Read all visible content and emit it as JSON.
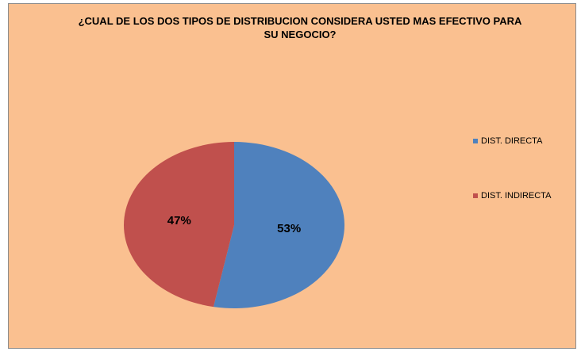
{
  "chart_data": {
    "type": "pie",
    "title": "¿CUAL DE LOS DOS TIPOS DE DISTRIBUCION CONSIDERA USTED MAS EFECTIVO PARA SU NEGOCIO?",
    "categories": [
      "DIST. DIRECTA",
      "DIST. INDIRECTA"
    ],
    "values": [
      53,
      47
    ],
    "value_labels": [
      "53%",
      "47%"
    ],
    "colors": [
      "#4f81bd",
      "#c0504d"
    ],
    "legend": "right"
  }
}
